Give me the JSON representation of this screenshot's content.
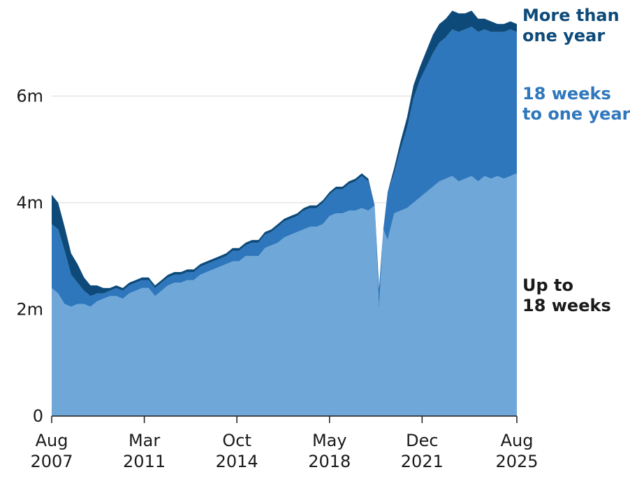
{
  "chart_data": {
    "type": "area",
    "stacked": true,
    "title": "",
    "xlabel": "",
    "ylabel": "",
    "unit": "m",
    "x_range": [
      "2007-08",
      "2025-08"
    ],
    "ylim": [
      0,
      7.8
    ],
    "grid": "horizontal",
    "legend": "direct-labels-right",
    "x_ticks": [
      {
        "date": "2007-08",
        "month": "Aug",
        "year": "2007"
      },
      {
        "date": "2011-03",
        "month": "Mar",
        "year": "2011"
      },
      {
        "date": "2014-10",
        "month": "Oct",
        "year": "2014"
      },
      {
        "date": "2018-05",
        "month": "May",
        "year": "2018"
      },
      {
        "date": "2021-12",
        "month": "Dec",
        "year": "2021"
      },
      {
        "date": "2025-08",
        "month": "Aug",
        "year": "2025"
      }
    ],
    "y_ticks": [
      {
        "value": 0,
        "label": "0"
      },
      {
        "value": 2,
        "label": "2m"
      },
      {
        "value": 4,
        "label": "4m"
      },
      {
        "value": 6,
        "label": "6m"
      }
    ],
    "x": [
      "2007-08",
      "2007-11",
      "2008-02",
      "2008-05",
      "2008-08",
      "2008-11",
      "2009-02",
      "2009-05",
      "2009-08",
      "2009-11",
      "2010-02",
      "2010-05",
      "2010-08",
      "2010-11",
      "2011-02",
      "2011-05",
      "2011-08",
      "2011-11",
      "2012-02",
      "2012-05",
      "2012-08",
      "2012-11",
      "2013-02",
      "2013-05",
      "2013-08",
      "2013-11",
      "2014-02",
      "2014-05",
      "2014-08",
      "2014-11",
      "2015-02",
      "2015-05",
      "2015-08",
      "2015-11",
      "2016-02",
      "2016-05",
      "2016-08",
      "2016-11",
      "2017-02",
      "2017-05",
      "2017-08",
      "2017-11",
      "2018-02",
      "2018-05",
      "2018-08",
      "2018-11",
      "2019-02",
      "2019-05",
      "2019-08",
      "2019-11",
      "2020-02",
      "2020-04",
      "2020-06",
      "2020-08",
      "2020-11",
      "2021-02",
      "2021-05",
      "2021-08",
      "2021-11",
      "2022-02",
      "2022-05",
      "2022-08",
      "2022-11",
      "2023-02",
      "2023-05",
      "2023-08",
      "2023-11",
      "2024-02",
      "2024-05",
      "2024-08",
      "2024-11",
      "2025-02",
      "2025-05",
      "2025-08"
    ],
    "series": [
      {
        "name": "Up to 18 weeks",
        "color": "#6fa8d8",
        "values": [
          2.4,
          2.3,
          2.1,
          2.05,
          2.1,
          2.1,
          2.05,
          2.15,
          2.2,
          2.25,
          2.25,
          2.2,
          2.3,
          2.35,
          2.4,
          2.4,
          2.25,
          2.35,
          2.45,
          2.5,
          2.5,
          2.55,
          2.55,
          2.65,
          2.7,
          2.75,
          2.8,
          2.85,
          2.9,
          2.9,
          3.0,
          3.0,
          3.0,
          3.15,
          3.2,
          3.25,
          3.35,
          3.4,
          3.45,
          3.5,
          3.55,
          3.55,
          3.6,
          3.75,
          3.8,
          3.8,
          3.85,
          3.85,
          3.9,
          3.85,
          3.95,
          2.0,
          3.5,
          3.3,
          3.8,
          3.85,
          3.9,
          4.0,
          4.1,
          4.2,
          4.3,
          4.4,
          4.45,
          4.5,
          4.4,
          4.45,
          4.5,
          4.4,
          4.5,
          4.45,
          4.5,
          4.45,
          4.5,
          4.55
        ]
      },
      {
        "name": "18 weeks to one year",
        "color": "#2f77bc",
        "values": [
          1.2,
          1.2,
          1.0,
          0.6,
          0.4,
          0.25,
          0.2,
          0.15,
          0.1,
          0.1,
          0.15,
          0.15,
          0.15,
          0.15,
          0.15,
          0.15,
          0.15,
          0.15,
          0.15,
          0.15,
          0.15,
          0.15,
          0.15,
          0.15,
          0.15,
          0.15,
          0.15,
          0.15,
          0.2,
          0.2,
          0.2,
          0.25,
          0.25,
          0.25,
          0.25,
          0.3,
          0.3,
          0.3,
          0.3,
          0.35,
          0.35,
          0.35,
          0.4,
          0.4,
          0.45,
          0.45,
          0.5,
          0.55,
          0.6,
          0.55,
          0.0,
          0.4,
          0.0,
          0.9,
          0.75,
          1.15,
          1.5,
          1.95,
          2.2,
          2.35,
          2.5,
          2.6,
          2.65,
          2.75,
          2.8,
          2.8,
          2.8,
          2.8,
          2.75,
          2.75,
          2.7,
          2.75,
          2.75,
          2.65
        ]
      },
      {
        "name": "More than one year",
        "color": "#0d4a7a",
        "values": [
          0.55,
          0.5,
          0.45,
          0.4,
          0.35,
          0.25,
          0.2,
          0.15,
          0.1,
          0.05,
          0.05,
          0.05,
          0.05,
          0.05,
          0.05,
          0.05,
          0.05,
          0.05,
          0.05,
          0.05,
          0.05,
          0.05,
          0.05,
          0.05,
          0.05,
          0.05,
          0.05,
          0.05,
          0.05,
          0.05,
          0.05,
          0.05,
          0.05,
          0.05,
          0.05,
          0.05,
          0.05,
          0.05,
          0.05,
          0.05,
          0.05,
          0.05,
          0.05,
          0.05,
          0.05,
          0.05,
          0.05,
          0.05,
          0.05,
          0.05,
          0.0,
          0.0,
          0.0,
          0.0,
          0.1,
          0.15,
          0.2,
          0.25,
          0.25,
          0.3,
          0.35,
          0.35,
          0.35,
          0.35,
          0.35,
          0.3,
          0.3,
          0.25,
          0.2,
          0.2,
          0.15,
          0.15,
          0.15,
          0.15
        ]
      }
    ],
    "series_labels": [
      {
        "series": 2,
        "lines": [
          "More than",
          "one year"
        ],
        "color": "#0d4a7a"
      },
      {
        "series": 1,
        "lines": [
          "18 weeks",
          "to one year"
        ],
        "color": "#2f77bc"
      },
      {
        "series": 0,
        "lines": [
          "Up to",
          "18 weeks"
        ],
        "color": "#1a1a1a"
      }
    ]
  }
}
